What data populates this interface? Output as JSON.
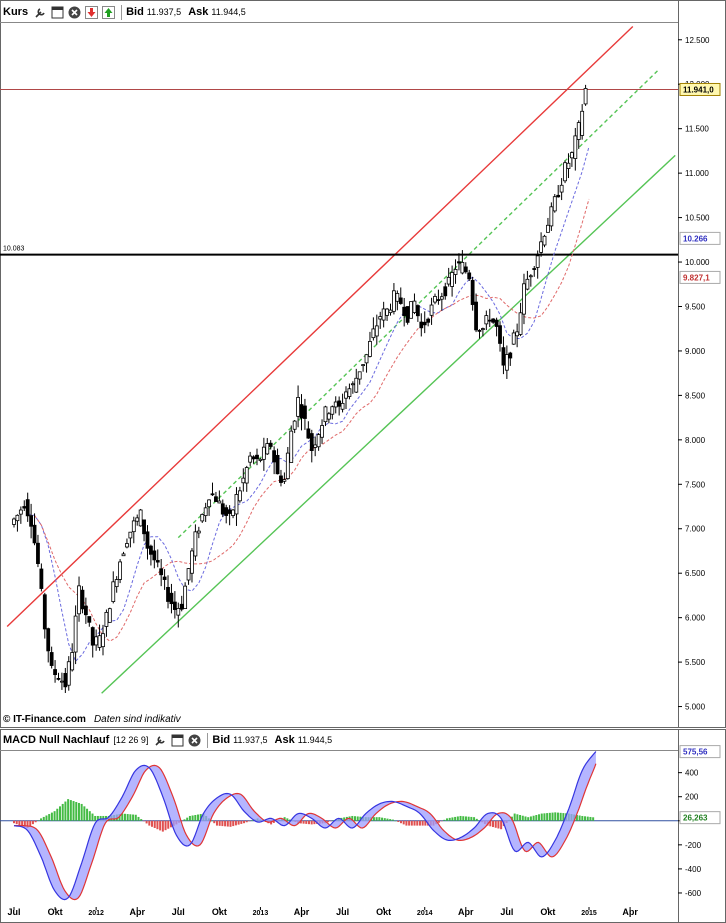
{
  "price_panel": {
    "title": "Kurs",
    "bid_label": "Bid",
    "bid_value": "11.937,5",
    "ask_label": "Ask",
    "ask_value": "11.944,5",
    "icons": [
      "wrench-icon",
      "window-icon",
      "close-icon",
      "arrow-down-icon",
      "arrow-up-icon"
    ],
    "last_price_label": "11.941,0",
    "ma_short_label": "10.266",
    "ma_long_label": "9.827,1",
    "hline_label": "10.083",
    "source": "© IT-Finance.com",
    "source_note": "Daten sind indikativ"
  },
  "macd_panel": {
    "title": "MACD Null Nachlauf",
    "params": "[12 26 9]",
    "bid_label": "Bid",
    "bid_value": "11.937,5",
    "ask_label": "Ask",
    "ask_value": "11.944,5",
    "macd_label": "575,56",
    "hist_label": "26,263"
  },
  "colors": {
    "up_trend": "#e83a3a",
    "green_channel": "#55c455",
    "ma_short": "#6b6bdf",
    "ma_long": "#e06a6a",
    "price_hline": "#b04848",
    "hist_pos": "#44bb44",
    "hist_neg": "#e05050",
    "macd_line": "#3535e0",
    "signal_line": "#e03535",
    "fill_pos": "#ff9c9c",
    "fill_neg": "#9c9cff"
  },
  "chart_data": [
    {
      "type": "candlestick",
      "title": "Kurs",
      "x_ticks": [
        "Jul",
        "Okt",
        "2012",
        "Apr",
        "Jul",
        "Okt",
        "2013",
        "Apr",
        "Jul",
        "Okt",
        "2014",
        "Apr",
        "Jul",
        "Okt",
        "2015",
        "Apr"
      ],
      "x_tick_months": [
        0,
        3,
        6,
        9,
        12,
        15,
        18,
        21,
        24,
        27,
        30,
        33,
        36,
        39,
        42,
        45
      ],
      "y_ticks": [
        "5.000",
        "5.500",
        "6.000",
        "6.500",
        "7.000",
        "7.500",
        "8.000",
        "8.500",
        "9.000",
        "9.500",
        "10.000",
        "10.500",
        "11.000",
        "11.500",
        "12.000",
        "12.500"
      ],
      "ylim": [
        4950,
        12700
      ],
      "xlim_months": [
        0,
        48.5
      ],
      "horizontal_level": 10083,
      "last_price": 11941,
      "closes_approx": [
        [
          0,
          7050
        ],
        [
          0.5,
          7150
        ],
        [
          1.0,
          7300
        ],
        [
          1.5,
          7100
        ],
        [
          2.0,
          6600
        ],
        [
          2.5,
          5900
        ],
        [
          3.0,
          5400
        ],
        [
          3.5,
          5350
        ],
        [
          4.0,
          5250
        ],
        [
          4.5,
          5650
        ],
        [
          5.0,
          6300
        ],
        [
          5.5,
          6050
        ],
        [
          6.0,
          5700
        ],
        [
          6.5,
          5750
        ],
        [
          7.0,
          6000
        ],
        [
          7.5,
          6350
        ],
        [
          8.0,
          6650
        ],
        [
          8.5,
          6900
        ],
        [
          9.0,
          7050
        ],
        [
          9.5,
          7150
        ],
        [
          10.0,
          6800
        ],
        [
          10.5,
          6650
        ],
        [
          11.0,
          6450
        ],
        [
          11.5,
          6250
        ],
        [
          12.0,
          6100
        ],
        [
          12.5,
          6150
        ],
        [
          13.0,
          6550
        ],
        [
          13.5,
          6900
        ],
        [
          14.0,
          7150
        ],
        [
          14.5,
          7400
        ],
        [
          15.0,
          7350
        ],
        [
          15.5,
          7200
        ],
        [
          16.0,
          7100
        ],
        [
          16.5,
          7350
        ],
        [
          17.0,
          7550
        ],
        [
          17.5,
          7800
        ],
        [
          18.0,
          7750
        ],
        [
          18.5,
          7850
        ],
        [
          19.0,
          7950
        ],
        [
          19.5,
          7600
        ],
        [
          20.0,
          7550
        ],
        [
          20.5,
          8100
        ],
        [
          21.0,
          8450
        ],
        [
          21.5,
          8200
        ],
        [
          22.0,
          7900
        ],
        [
          22.5,
          8100
        ],
        [
          23.0,
          8300
        ],
        [
          23.5,
          8400
        ],
        [
          24.0,
          8350
        ],
        [
          24.5,
          8550
        ],
        [
          25.0,
          8600
        ],
        [
          25.5,
          8800
        ],
        [
          26.0,
          8950
        ],
        [
          26.5,
          9200
        ],
        [
          27.0,
          9400
        ],
        [
          27.5,
          9450
        ],
        [
          28.0,
          9600
        ],
        [
          28.5,
          9550
        ],
        [
          29.0,
          9400
        ],
        [
          29.5,
          9550
        ],
        [
          30.0,
          9250
        ],
        [
          30.5,
          9400
        ],
        [
          31.0,
          9550
        ],
        [
          31.5,
          9650
        ],
        [
          32.0,
          9750
        ],
        [
          32.5,
          9950
        ],
        [
          33.0,
          9950
        ],
        [
          33.5,
          9850
        ],
        [
          34.0,
          9300
        ],
        [
          34.5,
          9250
        ],
        [
          35.0,
          9400
        ],
        [
          35.5,
          9250
        ],
        [
          36.0,
          8800
        ],
        [
          36.5,
          9000
        ],
        [
          37.0,
          9250
        ],
        [
          37.5,
          9700
        ],
        [
          38.0,
          9900
        ],
        [
          38.5,
          10100
        ],
        [
          39.0,
          10350
        ],
        [
          39.5,
          10550
        ],
        [
          40.0,
          10800
        ],
        [
          40.5,
          11050
        ],
        [
          41.0,
          11200
        ],
        [
          41.5,
          11500
        ],
        [
          42.0,
          11941
        ]
      ]
    },
    {
      "type": "bar",
      "title": "MACD Null Nachlauf",
      "y_ticks": [
        "400",
        "200",
        "0",
        "-200",
        "-400",
        "-600"
      ],
      "ylim": [
        -700,
        580
      ],
      "series": [
        {
          "name": "MACD",
          "points": [
            [
              0,
              -40
            ],
            [
              1,
              -80
            ],
            [
              2,
              -300
            ],
            [
              3,
              -580
            ],
            [
              4,
              -640
            ],
            [
              5,
              -350
            ],
            [
              6,
              -20
            ],
            [
              7,
              30
            ],
            [
              8,
              200
            ],
            [
              9,
              420
            ],
            [
              10,
              440
            ],
            [
              11,
              200
            ],
            [
              12,
              -120
            ],
            [
              13,
              -200
            ],
            [
              14,
              60
            ],
            [
              15,
              190
            ],
            [
              16,
              220
            ],
            [
              17,
              80
            ],
            [
              18,
              -10
            ],
            [
              19,
              20
            ],
            [
              20,
              -40
            ],
            [
              21,
              60
            ],
            [
              22,
              20
            ],
            [
              23,
              -60
            ],
            [
              24,
              20
            ],
            [
              25,
              -60
            ],
            [
              26,
              60
            ],
            [
              27,
              140
            ],
            [
              28,
              160
            ],
            [
              29,
              120
            ],
            [
              30,
              60
            ],
            [
              31,
              -80
            ],
            [
              32,
              -160
            ],
            [
              33,
              -140
            ],
            [
              34,
              -60
            ],
            [
              35,
              60
            ],
            [
              36,
              20
            ],
            [
              37,
              -250
            ],
            [
              38,
              -180
            ],
            [
              39,
              -300
            ],
            [
              40,
              -160
            ],
            [
              41,
              100
            ],
            [
              42,
              420
            ],
            [
              43,
              575.56
            ]
          ]
        },
        {
          "name": "Histogramm",
          "points": [
            [
              0,
              -20
            ],
            [
              1,
              -60
            ],
            [
              2,
              20
            ],
            [
              3,
              80
            ],
            [
              4,
              180
            ],
            [
              5,
              140
            ],
            [
              6,
              40
            ],
            [
              7,
              40
            ],
            [
              8,
              60
            ],
            [
              9,
              50
            ],
            [
              10,
              -40
            ],
            [
              11,
              -90
            ],
            [
              12,
              -30
            ],
            [
              13,
              40
            ],
            [
              14,
              60
            ],
            [
              15,
              -40
            ],
            [
              16,
              -50
            ],
            [
              17,
              -20
            ],
            [
              18,
              20
            ],
            [
              19,
              -30
            ],
            [
              20,
              30
            ],
            [
              21,
              -20
            ],
            [
              22,
              -30
            ],
            [
              23,
              -20
            ],
            [
              24,
              20
            ],
            [
              25,
              40
            ],
            [
              26,
              30
            ],
            [
              27,
              30
            ],
            [
              28,
              10
            ],
            [
              29,
              -40
            ],
            [
              30,
              -40
            ],
            [
              31,
              -40
            ],
            [
              32,
              20
            ],
            [
              33,
              40
            ],
            [
              34,
              30
            ],
            [
              35,
              -40
            ],
            [
              36,
              -70
            ],
            [
              37,
              60
            ],
            [
              38,
              30
            ],
            [
              39,
              60
            ],
            [
              40,
              70
            ],
            [
              41,
              60
            ],
            [
              42,
              40
            ],
            [
              43,
              26.263
            ]
          ]
        }
      ]
    }
  ]
}
